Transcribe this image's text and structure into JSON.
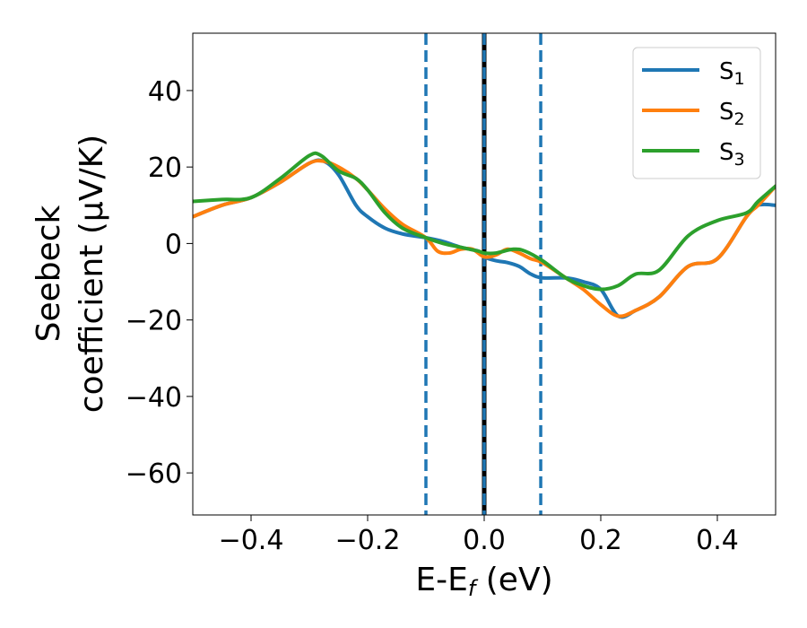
{
  "chart_data": {
    "type": "line",
    "xlabel": {
      "main": "E-E",
      "sub": "f",
      "unit": " (eV)"
    },
    "ylabel": {
      "line1": "Seebeck",
      "line2": "coefficient  (μV/K)"
    },
    "xlim": [
      -0.5,
      0.5
    ],
    "ylim": [
      -71,
      55
    ],
    "xticks": [
      -0.4,
      -0.2,
      0.0,
      0.2,
      0.4
    ],
    "xtick_labels": [
      "−0.4",
      "−0.2",
      "0.0",
      "0.2",
      "0.4"
    ],
    "yticks": [
      -60,
      -40,
      -20,
      0,
      20,
      40
    ],
    "ytick_labels": [
      "−60",
      "−40",
      "−20",
      "0",
      "20",
      "40"
    ],
    "grid": false,
    "legend_position": "top-right",
    "vlines": [
      {
        "x": -0.1,
        "style": "dashed",
        "color": "#1f77b4"
      },
      {
        "x": 0.0,
        "style": "solid",
        "color": "#000000"
      },
      {
        "x": 0.0,
        "style": "dashed",
        "color": "#1f77b4"
      },
      {
        "x": 0.097,
        "style": "dashed",
        "color": "#1f77b4"
      }
    ],
    "series": [
      {
        "name": "S",
        "sub": "1",
        "color": "#1f77b4",
        "x": [
          -0.5,
          -0.45,
          -0.4,
          -0.35,
          -0.3,
          -0.275,
          -0.25,
          -0.22,
          -0.2,
          -0.17,
          -0.14,
          -0.1,
          -0.07,
          -0.04,
          -0.01,
          0.0,
          0.02,
          0.04,
          0.06,
          0.08,
          0.1,
          0.14,
          0.17,
          0.2,
          0.23,
          0.26,
          0.3,
          0.35,
          0.4,
          0.45,
          0.47,
          0.5
        ],
        "y": [
          7,
          10,
          12,
          16,
          21,
          21.5,
          18,
          10,
          7,
          4,
          2.5,
          1.5,
          0.5,
          -1,
          -2,
          -3.5,
          -4.5,
          -5,
          -6,
          -8,
          -9,
          -9,
          -10,
          -12,
          -19,
          -17.5,
          -14,
          -6,
          -4,
          7,
          10,
          10
        ]
      },
      {
        "name": "S",
        "sub": "2",
        "color": "#ff7f0e",
        "x": [
          -0.5,
          -0.45,
          -0.4,
          -0.35,
          -0.3,
          -0.275,
          -0.25,
          -0.22,
          -0.2,
          -0.17,
          -0.14,
          -0.1,
          -0.08,
          -0.06,
          -0.04,
          -0.02,
          0.0,
          0.02,
          0.04,
          0.06,
          0.08,
          0.1,
          0.14,
          0.17,
          0.2,
          0.23,
          0.26,
          0.3,
          0.35,
          0.4,
          0.45,
          0.47,
          0.5
        ],
        "y": [
          7,
          10,
          12,
          16,
          21,
          21.5,
          20,
          17,
          14,
          9,
          5,
          1.5,
          -2,
          -2.5,
          -1.5,
          -1.5,
          -3.5,
          -3,
          -1.5,
          -2.5,
          -4,
          -5,
          -9,
          -12,
          -16,
          -19,
          -17.5,
          -14,
          -6,
          -4,
          7,
          10,
          15
        ]
      },
      {
        "name": "S",
        "sub": "3",
        "color": "#2ca02c",
        "x": [
          -0.5,
          -0.45,
          -0.4,
          -0.35,
          -0.3,
          -0.28,
          -0.25,
          -0.22,
          -0.2,
          -0.17,
          -0.14,
          -0.1,
          -0.07,
          -0.04,
          -0.01,
          0.0,
          0.02,
          0.05,
          0.07,
          0.1,
          0.14,
          0.17,
          0.2,
          0.23,
          0.26,
          0.3,
          0.35,
          0.4,
          0.45,
          0.47,
          0.5
        ],
        "y": [
          11,
          11.5,
          12,
          17,
          23,
          23,
          19,
          17,
          14,
          8,
          4,
          1.5,
          0,
          -1,
          -2,
          -2.5,
          -2.5,
          -1.5,
          -2,
          -4.5,
          -9,
          -11,
          -12,
          -11,
          -8,
          -7,
          2,
          6,
          8,
          11,
          15
        ]
      }
    ]
  }
}
